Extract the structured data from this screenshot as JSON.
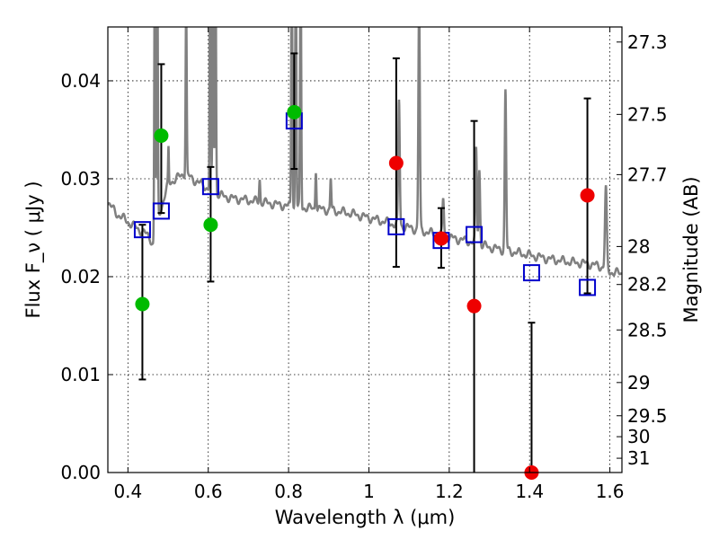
{
  "chart_data": {
    "type": "scatter",
    "xlabel": "Wavelength  λ (μm)",
    "ylabel": "Flux  F_ν  ( μJy )",
    "y2label": "Magnitude (AB)",
    "xlim": [
      0.35,
      1.63
    ],
    "ylim": [
      0.0,
      0.0455
    ],
    "xticks": [
      0.4,
      0.6,
      0.8,
      1.0,
      1.2,
      1.4,
      1.6
    ],
    "xtick_labels": [
      "0.4",
      "0.6",
      "0.8",
      "1",
      "1.2",
      "1.4",
      "1.6"
    ],
    "yticks": [
      0.0,
      0.01,
      0.02,
      0.03,
      0.04
    ],
    "ytick_labels": [
      "0.00",
      "0.01",
      "0.02",
      "0.03",
      "0.04"
    ],
    "mag_ticks": [
      {
        "label": "27.3",
        "flux": 0.04396
      },
      {
        "label": "27.5",
        "flux": 0.03657
      },
      {
        "label": "27.7",
        "flux": 0.03042
      },
      {
        "label": "28",
        "flux": 0.02308
      },
      {
        "label": "28.2",
        "flux": 0.0192
      },
      {
        "label": "28.5",
        "flux": 0.01456
      },
      {
        "label": "29",
        "flux": 0.00919
      },
      {
        "label": "29.5",
        "flux": 0.0058
      },
      {
        "label": "30",
        "flux": 0.00366
      },
      {
        "label": "31",
        "flux": 0.00146
      }
    ],
    "grid": true,
    "colors": {
      "model": "#808080",
      "green": "#00bb00",
      "red": "#ee0000",
      "box": "#0000cc",
      "errorbar": "#000000"
    },
    "model_spectrum": {
      "continuum": [
        [
          0.35,
          0.0276
        ],
        [
          0.37,
          0.0265
        ],
        [
          0.4,
          0.0256
        ],
        [
          0.42,
          0.025
        ],
        [
          0.44,
          0.0245
        ],
        [
          0.455,
          0.024
        ],
        [
          0.465,
          0.023
        ],
        [
          0.475,
          0.026
        ],
        [
          0.49,
          0.028
        ],
        [
          0.5,
          0.0295
        ],
        [
          0.52,
          0.03
        ],
        [
          0.54,
          0.0305
        ],
        [
          0.56,
          0.03
        ],
        [
          0.58,
          0.0295
        ],
        [
          0.6,
          0.029
        ],
        [
          0.63,
          0.0283
        ],
        [
          0.66,
          0.028
        ],
        [
          0.7,
          0.0278
        ],
        [
          0.75,
          0.0275
        ],
        [
          0.8,
          0.0272
        ],
        [
          0.85,
          0.027
        ],
        [
          0.9,
          0.0268
        ],
        [
          0.95,
          0.0265
        ],
        [
          1.0,
          0.026
        ],
        [
          1.05,
          0.0255
        ],
        [
          1.1,
          0.025
        ],
        [
          1.15,
          0.0245
        ],
        [
          1.2,
          0.024
        ],
        [
          1.25,
          0.0236
        ],
        [
          1.3,
          0.023
        ],
        [
          1.35,
          0.0226
        ],
        [
          1.4,
          0.0222
        ],
        [
          1.45,
          0.0218
        ],
        [
          1.5,
          0.0215
        ],
        [
          1.55,
          0.0213
        ],
        [
          1.58,
          0.021
        ],
        [
          1.6,
          0.0205
        ],
        [
          1.63,
          0.0203
        ]
      ],
      "lines": [
        [
          0.467,
          0.055,
          0.003
        ],
        [
          0.473,
          0.055,
          0.003
        ],
        [
          0.501,
          0.033,
          0.002
        ],
        [
          0.545,
          0.048,
          0.003
        ],
        [
          0.605,
          0.055,
          0.003
        ],
        [
          0.612,
          0.055,
          0.003
        ],
        [
          0.618,
          0.055,
          0.003
        ],
        [
          0.728,
          0.03,
          0.003
        ],
        [
          0.808,
          0.055,
          0.003
        ],
        [
          0.818,
          0.055,
          0.003
        ],
        [
          0.83,
          0.055,
          0.003
        ],
        [
          0.868,
          0.031,
          0.003
        ],
        [
          0.905,
          0.03,
          0.003
        ],
        [
          1.075,
          0.038,
          0.004
        ],
        [
          1.125,
          0.048,
          0.004
        ],
        [
          1.185,
          0.028,
          0.004
        ],
        [
          1.267,
          0.033,
          0.004
        ],
        [
          1.275,
          0.031,
          0.004
        ],
        [
          1.34,
          0.039,
          0.004
        ],
        [
          1.59,
          0.029,
          0.005
        ]
      ]
    },
    "series": [
      {
        "name": "green detections",
        "marker": "circle",
        "color": "#00bb00",
        "points": [
          {
            "x": 0.436,
            "y": 0.0172,
            "ylo": 0.0095,
            "yhi": 0.0253
          },
          {
            "x": 0.483,
            "y": 0.0344,
            "ylo": 0.0265,
            "yhi": 0.0417
          },
          {
            "x": 0.606,
            "y": 0.0253,
            "ylo": 0.0195,
            "yhi": 0.0312
          },
          {
            "x": 0.814,
            "y": 0.0368,
            "ylo": 0.031,
            "yhi": 0.0428
          }
        ]
      },
      {
        "name": "red detections",
        "marker": "circle",
        "color": "#ee0000",
        "points": [
          {
            "x": 1.068,
            "y": 0.0316,
            "ylo": 0.021,
            "yhi": 0.0423
          },
          {
            "x": 1.18,
            "y": 0.0239,
            "ylo": 0.0209,
            "yhi": 0.027
          },
          {
            "x": 1.262,
            "y": 0.017,
            "ylo": 0.0,
            "yhi": 0.0359
          },
          {
            "x": 1.405,
            "y": 0.0,
            "ylo": 0.0,
            "yhi": 0.0153
          },
          {
            "x": 1.544,
            "y": 0.0283,
            "ylo": 0.0183,
            "yhi": 0.0382
          }
        ]
      },
      {
        "name": "model photometry",
        "marker": "square",
        "color": "#0000cc",
        "points": [
          {
            "x": 0.436,
            "y": 0.0248
          },
          {
            "x": 0.483,
            "y": 0.0267
          },
          {
            "x": 0.606,
            "y": 0.0292
          },
          {
            "x": 0.814,
            "y": 0.0359
          },
          {
            "x": 1.068,
            "y": 0.0251
          },
          {
            "x": 1.18,
            "y": 0.0237
          },
          {
            "x": 1.262,
            "y": 0.0243
          },
          {
            "x": 1.405,
            "y": 0.0204
          },
          {
            "x": 1.544,
            "y": 0.0189
          }
        ]
      }
    ]
  }
}
